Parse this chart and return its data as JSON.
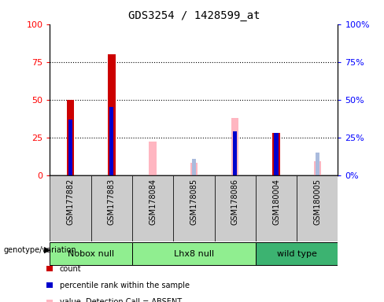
{
  "title": "GDS3254 / 1428599_at",
  "samples": [
    "GSM177882",
    "GSM177883",
    "GSM178084",
    "GSM178085",
    "GSM178086",
    "GSM180004",
    "GSM180005"
  ],
  "count_values": [
    50,
    80,
    null,
    null,
    null,
    28,
    null
  ],
  "rank_values": [
    37,
    45,
    null,
    null,
    29,
    28,
    null
  ],
  "absent_value_values": [
    null,
    null,
    22,
    8,
    38,
    null,
    9
  ],
  "absent_rank_values": [
    null,
    null,
    null,
    11,
    29,
    null,
    15
  ],
  "group_defs": [
    {
      "indices": [
        0,
        1
      ],
      "label": "Nobox null",
      "color": "#90EE90"
    },
    {
      "indices": [
        2,
        3,
        4
      ],
      "label": "Lhx8 null",
      "color": "#90EE90"
    },
    {
      "indices": [
        5,
        6
      ],
      "label": "wild type",
      "color": "#3CB371"
    }
  ],
  "ylim": [
    0,
    100
  ],
  "yticks": [
    0,
    25,
    50,
    75,
    100
  ],
  "count_color": "#CC0000",
  "rank_color": "#0000CC",
  "absent_value_color": "#FFB6C1",
  "absent_rank_color": "#AABBDD",
  "col_bg_color": "#CCCCCC",
  "bar_width": 0.18,
  "rank_bar_width": 0.1
}
